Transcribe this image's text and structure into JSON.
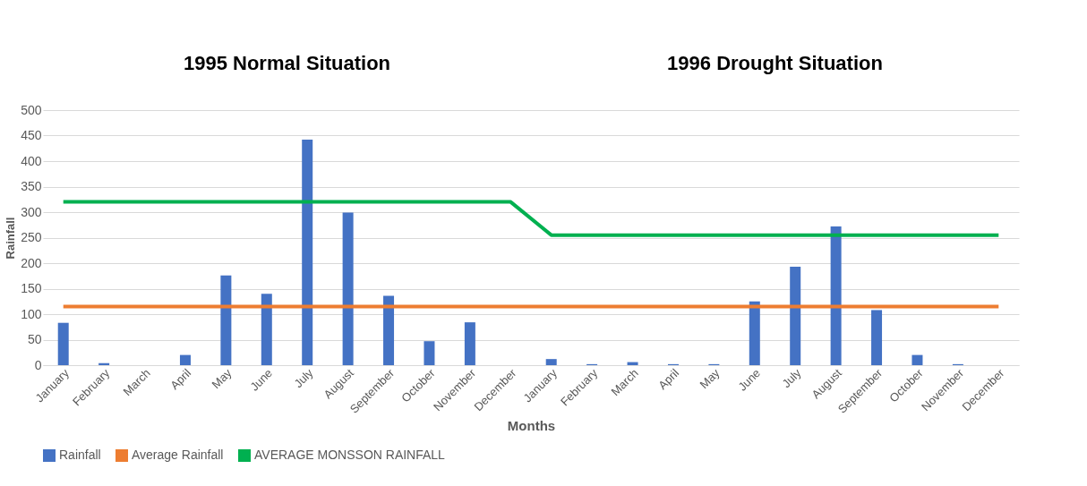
{
  "chart_data": {
    "type": "bar",
    "xlabel": "Months",
    "ylabel": "Rainfall",
    "annotations": [
      "1995 Normal Situation",
      "1996 Drought Situation"
    ],
    "categories": [
      "January",
      "February",
      "March",
      "April",
      "May",
      "June",
      "July",
      "August",
      "September",
      "October",
      "November",
      "December",
      "January",
      "February",
      "March",
      "April",
      "May",
      "June",
      "July",
      "August",
      "September",
      "October",
      "November",
      "December"
    ],
    "series": [
      {
        "name": "Rainfall",
        "color": "#4472c4",
        "values": [
          83,
          4,
          0,
          20,
          176,
          140,
          442,
          299,
          136,
          47,
          84,
          0,
          12,
          2,
          6,
          2,
          2,
          125,
          193,
          272,
          108,
          20,
          2,
          0
        ]
      },
      {
        "name": "Average Rainfall",
        "type": "line",
        "color": "#ed7d31",
        "values": [
          115,
          115,
          115,
          115,
          115,
          115,
          115,
          115,
          115,
          115,
          115,
          115,
          115,
          115,
          115,
          115,
          115,
          115,
          115,
          115,
          115,
          115,
          115,
          115
        ]
      },
      {
        "name": "AVERAGE MONSSON RAINFALL",
        "type": "line",
        "color": "#00b050",
        "values": [
          320,
          320,
          320,
          320,
          320,
          320,
          320,
          320,
          320,
          320,
          320,
          320,
          255,
          255,
          255,
          255,
          255,
          255,
          255,
          255,
          255,
          255,
          255,
          255
        ]
      }
    ],
    "ylim": [
      0,
      500
    ],
    "yticks": [
      0,
      50,
      100,
      150,
      200,
      250,
      300,
      350,
      400,
      450,
      500
    ],
    "grid": "y",
    "legend": "bottom"
  }
}
